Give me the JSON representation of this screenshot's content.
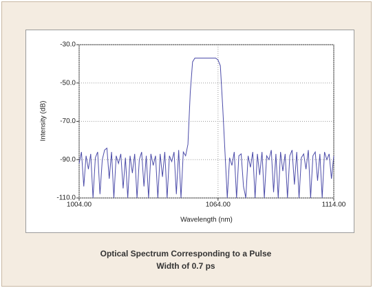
{
  "chart_data": {
    "type": "line",
    "caption": "Optical Spectrum Corresponding to a Pulse Width of 0.7 ps",
    "x_label": "Wavelength (nm)",
    "y_label": "Intensity (dB)",
    "x": [
      1004,
      1005,
      1006,
      1007,
      1008,
      1009,
      1010,
      1011,
      1012,
      1013,
      1014,
      1015,
      1016,
      1017,
      1018,
      1019,
      1020,
      1021,
      1022,
      1023,
      1024,
      1025,
      1026,
      1027,
      1028,
      1029,
      1030,
      1031,
      1032,
      1033,
      1034,
      1035,
      1036,
      1037,
      1038,
      1039,
      1040,
      1041,
      1042,
      1043,
      1044,
      1045,
      1046,
      1047,
      1048,
      1049,
      1050,
      1051,
      1052,
      1053,
      1054,
      1055,
      1056,
      1057,
      1058,
      1059,
      1060,
      1061,
      1062,
      1063,
      1064,
      1065,
      1066,
      1067,
      1068,
      1069,
      1070,
      1071,
      1072,
      1073,
      1074,
      1075,
      1076,
      1077,
      1078,
      1079,
      1080,
      1081,
      1082,
      1083,
      1084,
      1085,
      1086,
      1087,
      1088,
      1089,
      1090,
      1091,
      1092,
      1093,
      1094,
      1095,
      1096,
      1097,
      1098,
      1099,
      1100,
      1101,
      1102,
      1103,
      1104,
      1105,
      1106,
      1107,
      1108,
      1109,
      1110,
      1111,
      1112,
      1113,
      1114
    ],
    "series": [
      {
        "color": "#4a4aa8",
        "values": [
          -92,
          -86,
          -104,
          -88,
          -95,
          -87,
          -110,
          -89,
          -86,
          -108,
          -90,
          -85,
          -84,
          -100,
          -86,
          -110,
          -88,
          -92,
          -87,
          -105,
          -89,
          -110,
          -88,
          -97,
          -87,
          -110,
          -90,
          -86,
          -104,
          -88,
          -110,
          -87,
          -93,
          -88,
          -110,
          -87,
          -99,
          -86,
          -110,
          -88,
          -91,
          -86,
          -108,
          -85,
          -110,
          -86,
          -88,
          -82,
          -55,
          -39,
          -37,
          -37,
          -37,
          -37,
          -37,
          -37,
          -37,
          -37,
          -37,
          -37,
          -38,
          -41,
          -62,
          -86,
          -110,
          -89,
          -93,
          -86,
          -110,
          -88,
          -87,
          -104,
          -110,
          -88,
          -94,
          -86,
          -110,
          -87,
          -98,
          -86,
          -110,
          -88,
          -90,
          -85,
          -107,
          -87,
          -110,
          -86,
          -96,
          -87,
          -110,
          -88,
          -85,
          -103,
          -86,
          -110,
          -89,
          -87,
          -95,
          -85,
          -110,
          -88,
          -86,
          -101,
          -87,
          -110,
          -86,
          -90,
          -87,
          -100,
          -88
        ]
      }
    ],
    "xlim": [
      1004,
      1114
    ],
    "xticks": [
      {
        "value": 1004,
        "label": "1004.00"
      },
      {
        "value": 1064,
        "label": "1064.00"
      },
      {
        "value": 1114,
        "label": "1114.00"
      }
    ],
    "ylim": [
      -110,
      -30
    ],
    "yticks": [
      {
        "value": -110,
        "label": "-110.0"
      },
      {
        "value": -90,
        "label": "-90.0"
      },
      {
        "value": -70,
        "label": "-70.0"
      },
      {
        "value": -50,
        "label": "-50.0"
      },
      {
        "value": -30,
        "label": "-30.0"
      }
    ],
    "grid": true
  }
}
